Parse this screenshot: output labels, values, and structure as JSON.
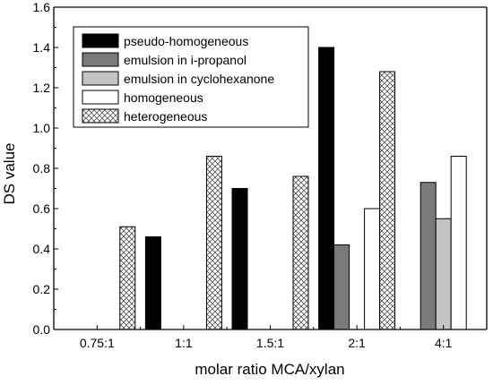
{
  "chart_data": {
    "type": "bar",
    "title": "",
    "xlabel": "molar ratio MCA/xylan",
    "ylabel": "DS value",
    "ylim": [
      0,
      1.6
    ],
    "y_ticks": [
      "0.0",
      "0.2",
      "0.4",
      "0.6",
      "0.8",
      "1.0",
      "1.2",
      "1.4",
      "1.6"
    ],
    "categories": [
      "0.75:1",
      "1:1",
      "1.5:1",
      "2:1",
      "4:1"
    ],
    "grid": false,
    "legend_position": "top-left",
    "series": [
      {
        "name": "pseudo-homogeneous",
        "color": "#000000",
        "pattern": "solid",
        "values": [
          null,
          0.46,
          0.7,
          1.4,
          null
        ]
      },
      {
        "name": "emulsion in i-propanol",
        "color": "#7a7a7a",
        "pattern": "solid",
        "values": [
          null,
          null,
          null,
          0.42,
          0.73
        ]
      },
      {
        "name": "emulsion in cyclohexanone",
        "color": "#c4c4c4",
        "pattern": "solid",
        "values": [
          null,
          null,
          null,
          null,
          0.55
        ]
      },
      {
        "name": "homogeneous",
        "color": "#ffffff",
        "pattern": "solid",
        "values": [
          null,
          null,
          null,
          0.6,
          0.86
        ]
      },
      {
        "name": "heterogeneous",
        "color": "#ffffff",
        "pattern": "crosshatch",
        "values": [
          0.51,
          0.86,
          0.76,
          1.28,
          null
        ]
      }
    ]
  }
}
